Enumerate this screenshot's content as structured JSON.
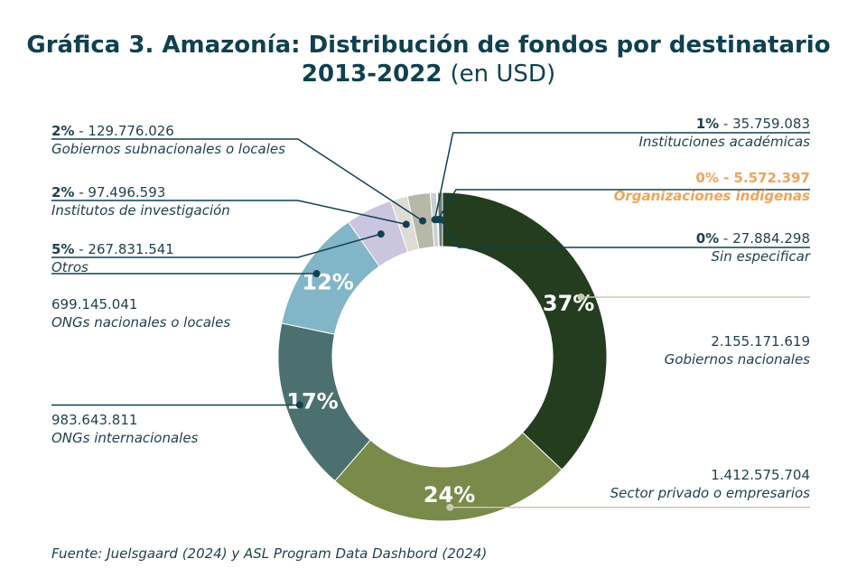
{
  "title": {
    "line1": "Gráfica 3. Amazonía: Distribución de fondos por destinatario",
    "line2_bold": "2013-2022",
    "line2_light": "(en USD)"
  },
  "source": "Fuente: Juelsgaard (2024) y ASL Program Data Dashbord (2024)",
  "colors": {
    "title": "#0f4150",
    "accent_orange": "#f0a35a",
    "gobiernos_nacionales": "#233d1e",
    "sector_privado": "#7a8a4a",
    "ongs_internacionales": "#4c7070",
    "ongs_nacionales": "#83b5c8",
    "otros": "#cbc6e0",
    "institutos": "#dedcd4",
    "gobiernos_subnacionales": "#b8b8a8",
    "instituciones_academicas": "#c9d2d0",
    "organizaciones_indigenas": "#f0a35a",
    "sin_especificar": "#6a7b78"
  },
  "chart_data": {
    "type": "pie",
    "donut": true,
    "title": "Gráfica 3. Amazonía: Distribución de fondos por destinatario 2013-2022 (en USD)",
    "slices": [
      {
        "name": "Gobiernos nacionales",
        "value": 2155171619,
        "value_label": "2.155.171.619",
        "pct_label": "37%",
        "color": "#233d1e"
      },
      {
        "name": "Sector privado o empresarios",
        "value": 1412575704,
        "value_label": "1.412.575.704",
        "pct_label": "24%",
        "color": "#7a8a4a"
      },
      {
        "name": "ONGs internacionales",
        "value": 983643811,
        "value_label": "983.643.811",
        "pct_label": "17%",
        "color": "#4c7070"
      },
      {
        "name": "ONGs nacionales o locales",
        "value": 699145041,
        "value_label": "699.145.041",
        "pct_label": "12%",
        "color": "#83b5c8"
      },
      {
        "name": "Otros",
        "value": 267831541,
        "value_label": "267.831.541",
        "pct_label": "5%",
        "color": "#cbc6e0"
      },
      {
        "name": "Institutos de investigación",
        "value": 97496593,
        "value_label": "97.496.593",
        "pct_label": "2%",
        "color": "#dedcd4"
      },
      {
        "name": "Gobiernos subnacionales o locales",
        "value": 129776026,
        "value_label": "129.776.026",
        "pct_label": "2%",
        "color": "#b8b8a8"
      },
      {
        "name": "Instituciones académicas",
        "value": 35759083,
        "value_label": "35.759.083",
        "pct_label": "1%",
        "color": "#c9d2d0"
      },
      {
        "name": "Organizaciones indígenas",
        "value": 5572397,
        "value_label": "5.572.397",
        "pct_label": "0%",
        "color": "#f0a35a"
      },
      {
        "name": "Sin especificar",
        "value": 27884298,
        "value_label": "27.884.298",
        "pct_label": "0%",
        "color": "#6a7b78"
      }
    ]
  }
}
